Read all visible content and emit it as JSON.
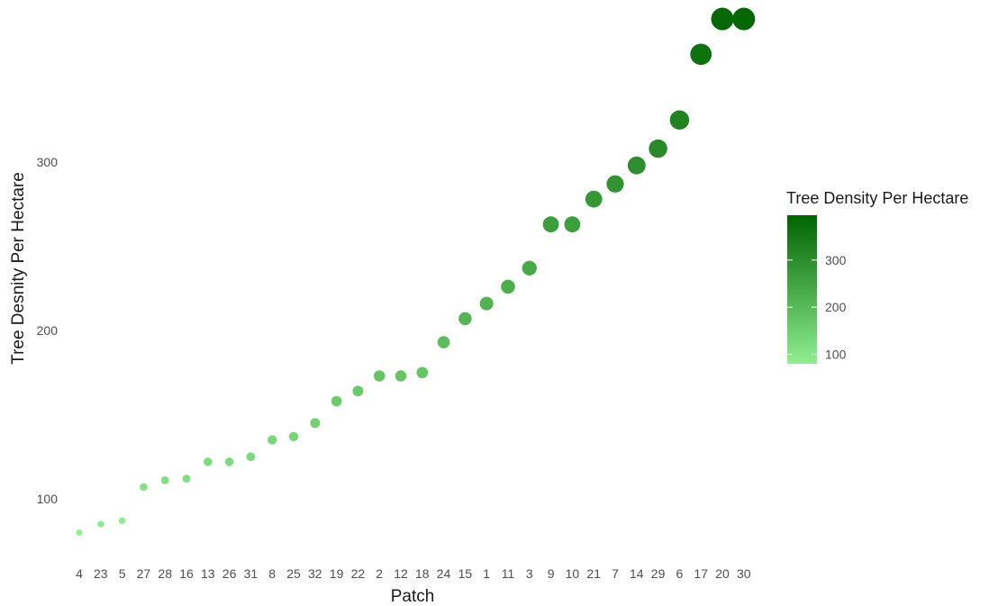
{
  "chart_data": {
    "type": "scatter",
    "xlabel": "Patch",
    "ylabel": "Tree Desnity Per Hectare",
    "ylim": [
      60,
      395
    ],
    "yticks": [
      100,
      200,
      300
    ],
    "grid": false,
    "legend_placement": "right",
    "categories": [
      "4",
      "23",
      "5",
      "27",
      "28",
      "16",
      "13",
      "26",
      "31",
      "8",
      "25",
      "32",
      "19",
      "22",
      "2",
      "12",
      "18",
      "24",
      "15",
      "1",
      "11",
      "3",
      "9",
      "10",
      "21",
      "7",
      "14",
      "29",
      "6",
      "17",
      "20",
      "30"
    ],
    "values": [
      80,
      85,
      87,
      107,
      111,
      112,
      122,
      122,
      125,
      135,
      137,
      145,
      158,
      164,
      173,
      173,
      175,
      193,
      207,
      216,
      226,
      237,
      263,
      263,
      278,
      287,
      298,
      308,
      325,
      364,
      385,
      385
    ],
    "legend": {
      "title": "Tree Density Per Hectare",
      "ticks": [
        100,
        200,
        300
      ],
      "range": [
        80,
        395
      ],
      "color_low": "#90EE90",
      "color_high": "#006400"
    }
  }
}
